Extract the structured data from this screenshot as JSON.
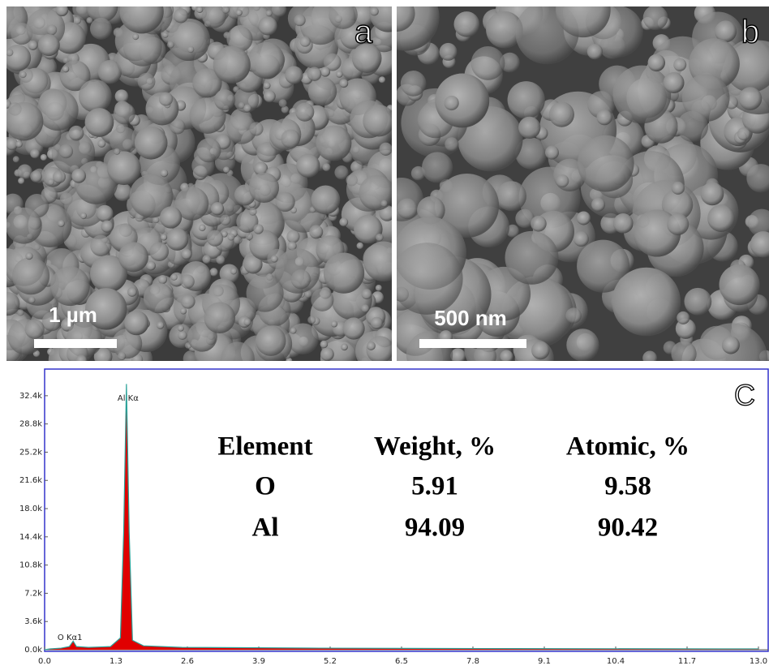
{
  "panels": [
    {
      "label": "a",
      "scale_bar": "1 µm"
    },
    {
      "label": "b",
      "scale_bar": "500 nm"
    }
  ],
  "chart_data": {
    "type": "area",
    "panel_label": "C",
    "x": [
      0,
      0.1,
      0.3,
      0.45,
      0.52,
      0.58,
      0.8,
      1.2,
      1.38,
      1.44,
      1.49,
      1.54,
      1.6,
      1.8,
      2.5,
      5,
      8,
      13
    ],
    "series": [
      {
        "color": "#e00000",
        "line_color": "#2aa198",
        "values": [
          0,
          100,
          200,
          400,
          1100,
          400,
          300,
          400,
          1500,
          15000,
          33900,
          15000,
          1200,
          500,
          300,
          200,
          150,
          100
        ]
      }
    ],
    "xlim": [
      0,
      13
    ],
    "ylim": [
      0,
      35800
    ],
    "xticks": [
      {
        "value": 0,
        "label": "0.0"
      },
      1.3,
      2.6,
      3.9,
      5.2,
      6.5,
      7.8,
      9.1,
      10.4,
      11.7,
      {
        "value": 13,
        "label": "13.0"
      }
    ],
    "yticks": [
      {
        "value": 0,
        "label": "0.0k"
      },
      {
        "value": 3600,
        "label": "3.6k"
      },
      {
        "value": 7200,
        "label": "7.2k"
      },
      {
        "value": 10800,
        "label": "10.8k"
      },
      {
        "value": 14400,
        "label": "14.4k"
      },
      {
        "value": 18000,
        "label": "18.0k"
      },
      {
        "value": 21600,
        "label": "21.6k"
      },
      {
        "value": 25200,
        "label": "25.2k"
      },
      {
        "value": 28800,
        "label": "28.8k"
      },
      {
        "value": 32400,
        "label": "32.4k"
      }
    ],
    "annotations": [
      {
        "text": "Al Kα",
        "x": 1.49
      },
      {
        "text": "O Kα1",
        "x": 0.52
      }
    ],
    "frame_color": "#3333cc"
  },
  "table": {
    "header": [
      "Element",
      "Weight, %",
      "Atomic, %"
    ],
    "rows": [
      [
        "O",
        "5.91",
        "9.58"
      ],
      [
        "Al",
        "94.09",
        "90.42"
      ]
    ]
  }
}
